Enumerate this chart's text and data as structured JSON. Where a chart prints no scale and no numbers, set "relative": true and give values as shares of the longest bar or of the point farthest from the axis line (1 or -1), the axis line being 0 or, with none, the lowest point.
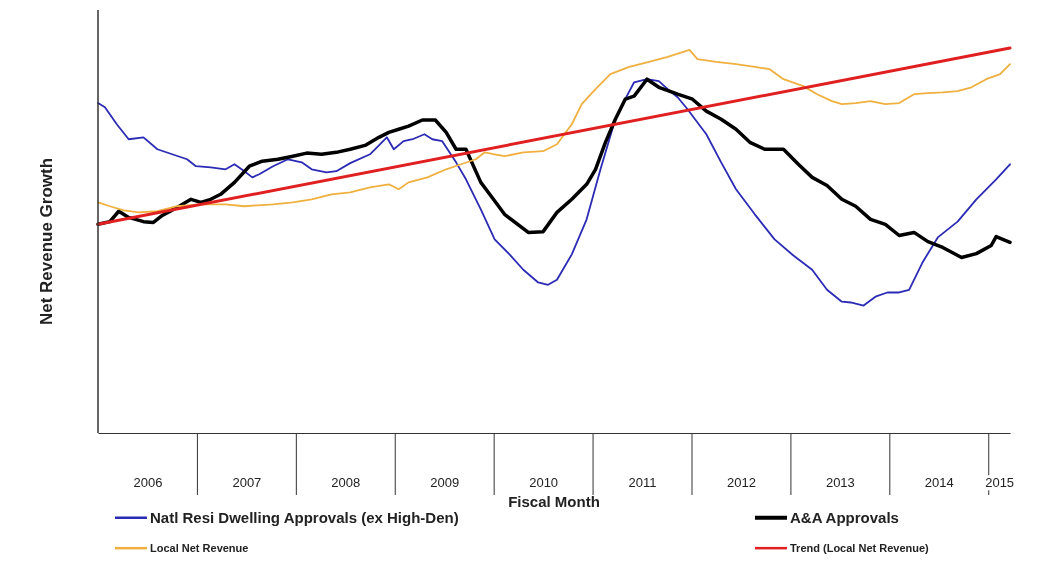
{
  "chart_data": {
    "type": "line",
    "relative": true,
    "ylabel": "Net Revenue Growth",
    "xlabel": "Fiscal Month",
    "legend": "bottom",
    "xlim": [
      2006,
      2015.22
    ],
    "xticks": [
      {
        "value": 2006.5,
        "label": "2006"
      },
      {
        "value": 2007,
        "label": null
      },
      {
        "value": 2007.5,
        "label": "2007"
      },
      {
        "value": 2008,
        "label": null
      },
      {
        "value": 2008.5,
        "label": "2008"
      },
      {
        "value": 2009,
        "label": null
      },
      {
        "value": 2009.5,
        "label": "2009"
      },
      {
        "value": 2010,
        "label": null
      },
      {
        "value": 2010.5,
        "label": "2010"
      },
      {
        "value": 2011,
        "label": null
      },
      {
        "value": 2011.5,
        "label": "2011"
      },
      {
        "value": 2012,
        "label": null
      },
      {
        "value": 2012.5,
        "label": "2012"
      },
      {
        "value": 2013,
        "label": null
      },
      {
        "value": 2013.5,
        "label": "2013"
      },
      {
        "value": 2014,
        "label": null
      },
      {
        "value": 2014.5,
        "label": "2014"
      },
      {
        "value": 2015,
        "label": null
      },
      {
        "value": 2015.11,
        "label": "2015"
      }
    ],
    "series": [
      {
        "name": "Natl Resi Dwelling Approvals  (ex High-Den)",
        "color": "#2b2bb5",
        "x": [
          2006.0,
          2006.07,
          2006.19,
          2006.31,
          2006.46,
          2006.6,
          2006.75,
          2006.9,
          2006.99,
          2007.14,
          2007.29,
          2007.38,
          2007.48,
          2007.56,
          2007.63,
          2007.77,
          2007.92,
          2008.06,
          2008.16,
          2008.31,
          2008.41,
          2008.55,
          2008.75,
          2008.92,
          2008.99,
          2009.09,
          2009.18,
          2009.3,
          2009.38,
          2009.48,
          2009.62,
          2009.72,
          2009.87,
          2010.01,
          2010.16,
          2010.3,
          2010.45,
          2010.55,
          2010.64,
          2010.79,
          2010.94,
          2011.08,
          2011.23,
          2011.33,
          2011.42,
          2011.55,
          2011.67,
          2011.76,
          2011.86,
          2011.96,
          2012.15,
          2012.3,
          2012.45,
          2012.64,
          2012.84,
          2013.03,
          2013.22,
          2013.37,
          2013.52,
          2013.61,
          2013.74,
          2013.86,
          2013.98,
          2014.1,
          2014.2,
          2014.34,
          2014.49,
          2014.69,
          2014.88,
          2015.08,
          2015.22
        ],
        "values": [
          0.857,
          0.846,
          0.802,
          0.763,
          0.768,
          0.737,
          0.724,
          0.711,
          0.693,
          0.69,
          0.685,
          0.698,
          0.68,
          0.664,
          0.672,
          0.693,
          0.711,
          0.703,
          0.685,
          0.677,
          0.68,
          0.701,
          0.724,
          0.768,
          0.737,
          0.758,
          0.763,
          0.776,
          0.763,
          0.758,
          0.703,
          0.659,
          0.581,
          0.503,
          0.464,
          0.424,
          0.391,
          0.385,
          0.398,
          0.464,
          0.555,
          0.685,
          0.815,
          0.867,
          0.911,
          0.919,
          0.914,
          0.893,
          0.872,
          0.841,
          0.776,
          0.703,
          0.633,
          0.568,
          0.503,
          0.461,
          0.424,
          0.372,
          0.341,
          0.339,
          0.331,
          0.354,
          0.365,
          0.365,
          0.372,
          0.445,
          0.508,
          0.549,
          0.607,
          0.659,
          0.698
        ]
      },
      {
        "name": "A&A Approvals",
        "color": "#000000",
        "x": [
          2006.0,
          2006.12,
          2006.21,
          2006.31,
          2006.46,
          2006.56,
          2006.65,
          2006.8,
          2006.94,
          2007.04,
          2007.14,
          2007.24,
          2007.38,
          2007.53,
          2007.66,
          2007.82,
          2007.97,
          2008.11,
          2008.26,
          2008.41,
          2008.55,
          2008.7,
          2008.84,
          2008.94,
          2009.04,
          2009.14,
          2009.28,
          2009.41,
          2009.52,
          2009.62,
          2009.72,
          2009.87,
          2009.96,
          2010.11,
          2010.35,
          2010.5,
          2010.64,
          2010.79,
          2010.94,
          2011.03,
          2011.13,
          2011.23,
          2011.33,
          2011.42,
          2011.55,
          2011.67,
          2011.86,
          2012.01,
          2012.15,
          2012.3,
          2012.45,
          2012.59,
          2012.74,
          2012.93,
          2013.08,
          2013.22,
          2013.37,
          2013.52,
          2013.66,
          2013.81,
          2013.96,
          2014.1,
          2014.25,
          2014.39,
          2014.54,
          2014.73,
          2014.88,
          2015.03,
          2015.08,
          2015.22
        ],
        "values": [
          0.542,
          0.549,
          0.576,
          0.56,
          0.549,
          0.547,
          0.565,
          0.586,
          0.607,
          0.599,
          0.607,
          0.62,
          0.651,
          0.693,
          0.706,
          0.711,
          0.719,
          0.727,
          0.724,
          0.729,
          0.737,
          0.747,
          0.768,
          0.781,
          0.789,
          0.797,
          0.813,
          0.813,
          0.781,
          0.737,
          0.737,
          0.651,
          0.62,
          0.568,
          0.521,
          0.523,
          0.573,
          0.607,
          0.646,
          0.685,
          0.755,
          0.815,
          0.867,
          0.875,
          0.919,
          0.898,
          0.88,
          0.867,
          0.836,
          0.815,
          0.789,
          0.755,
          0.737,
          0.737,
          0.698,
          0.664,
          0.643,
          0.607,
          0.589,
          0.555,
          0.542,
          0.513,
          0.521,
          0.497,
          0.482,
          0.456,
          0.466,
          0.487,
          0.51,
          0.495
        ]
      },
      {
        "name": "Local Net Revenue",
        "color": "#f0b040",
        "x": [
          2006.0,
          2006.12,
          2006.26,
          2006.41,
          2006.6,
          2006.8,
          2007.04,
          2007.29,
          2007.48,
          2007.77,
          2007.97,
          2008.16,
          2008.36,
          2008.55,
          2008.75,
          2008.94,
          2009.04,
          2009.14,
          2009.33,
          2009.52,
          2009.67,
          2009.82,
          2009.91,
          2010.01,
          2010.11,
          2010.3,
          2010.5,
          2010.64,
          2010.79,
          2010.89,
          2011.03,
          2011.18,
          2011.37,
          2011.57,
          2011.76,
          2011.98,
          2012.06,
          2012.25,
          2012.45,
          2012.64,
          2012.79,
          2012.93,
          2013.13,
          2013.27,
          2013.42,
          2013.52,
          2013.66,
          2013.81,
          2013.96,
          2014.1,
          2014.25,
          2014.39,
          2014.54,
          2014.69,
          2014.83,
          2014.98,
          2015.12,
          2015.22
        ],
        "values": [
          0.599,
          0.589,
          0.578,
          0.573,
          0.576,
          0.589,
          0.594,
          0.594,
          0.589,
          0.594,
          0.599,
          0.607,
          0.62,
          0.625,
          0.638,
          0.646,
          0.633,
          0.651,
          0.664,
          0.685,
          0.698,
          0.711,
          0.729,
          0.724,
          0.719,
          0.729,
          0.732,
          0.75,
          0.802,
          0.854,
          0.893,
          0.932,
          0.951,
          0.964,
          0.977,
          0.995,
          0.971,
          0.964,
          0.958,
          0.951,
          0.945,
          0.919,
          0.901,
          0.88,
          0.862,
          0.854,
          0.857,
          0.862,
          0.854,
          0.857,
          0.88,
          0.883,
          0.885,
          0.888,
          0.898,
          0.919,
          0.932,
          0.958
        ]
      },
      {
        "name": "Trend (Local Net Revenue)",
        "color": "#e02020",
        "x": [
          2006.0,
          2015.22
        ],
        "values": [
          0.542,
          1
        ]
      }
    ]
  }
}
